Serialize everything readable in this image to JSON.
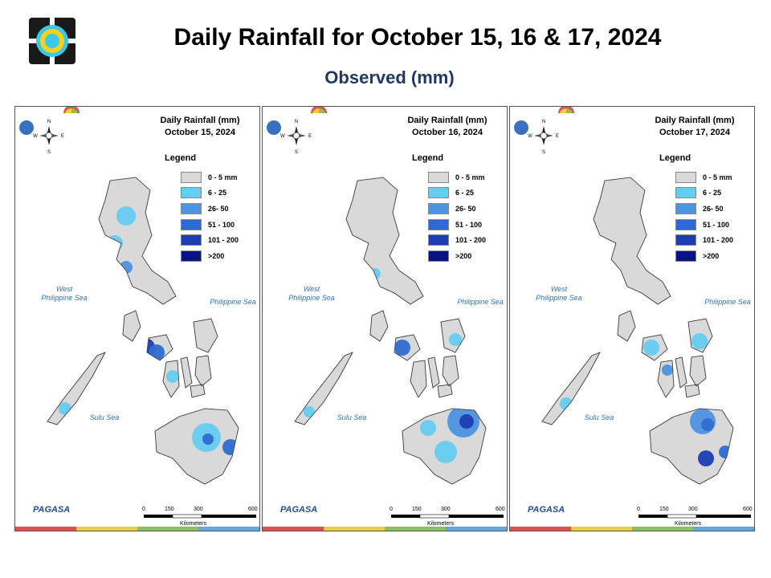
{
  "header": {
    "title": "Daily Rainfall for October 15, 16 & 17, 2024",
    "subtitle": "Observed (mm)"
  },
  "legend": {
    "title": "Legend",
    "classes": [
      {
        "label": "0 - 5 mm",
        "color": "#d9d9d9"
      },
      {
        "label": "6 - 25",
        "color": "#66ccf2"
      },
      {
        "label": "26- 50",
        "color": "#4d94e0"
      },
      {
        "label": "51 - 100",
        "color": "#2e6bd1"
      },
      {
        "label": "101 - 200",
        "color": "#1f3db3"
      },
      {
        "label": ">200",
        "color": "#0a1480"
      }
    ]
  },
  "maps": [
    {
      "title_line1": "Daily Rainfall (mm)",
      "date": "October 15, 2024"
    },
    {
      "title_line1": "Daily Rainfall (mm)",
      "date": "October 16, 2024"
    },
    {
      "title_line1": "Daily Rainfall (mm)",
      "date": "October 17, 2024"
    }
  ],
  "seas": {
    "west_line1": "West",
    "west_line2": "Philippine Sea",
    "east": "Philippine Sea",
    "sulu": "Sulu Sea"
  },
  "scale": {
    "ticks": [
      "0",
      "150",
      "300",
      "600"
    ],
    "unit": "Kilometers"
  },
  "footer": {
    "agency": "PAGASA"
  },
  "colors": {
    "subtitle": "#1f3864",
    "sea_label": "#2e75b6",
    "band": [
      "#e05050",
      "#e8d040",
      "#8cc060",
      "#60a8e0"
    ]
  }
}
